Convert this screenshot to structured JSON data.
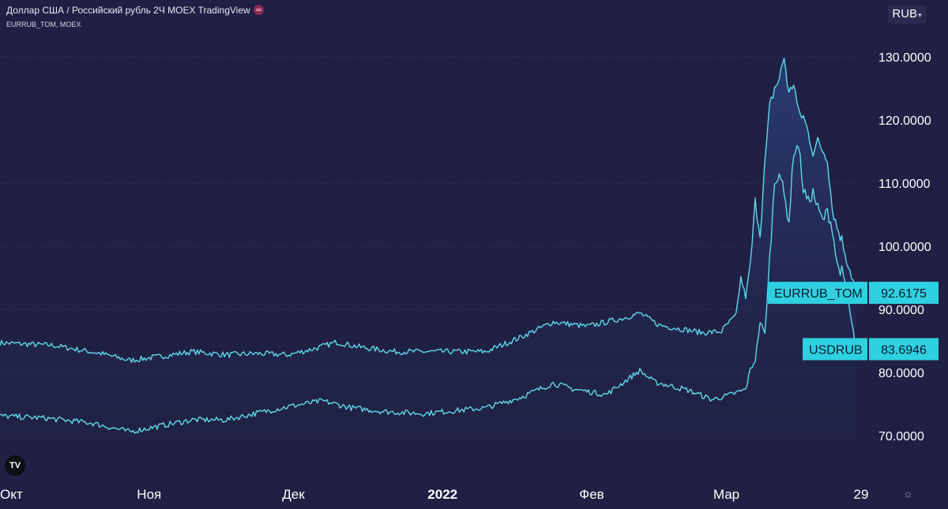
{
  "header": {
    "title": "Доллар США / Российский рубль  2Ч  MOEX  TradingView",
    "subtitle": "EURRUB_TOM, MOEX"
  },
  "currency_button": {
    "label": "RUB",
    "icon": "chevron-down-icon"
  },
  "logo": {
    "text": "TV",
    "icon": "tradingview-logo-icon"
  },
  "settings": {
    "icon": "gear-icon"
  },
  "colors": {
    "background": "#202044",
    "series_line": "#5fd8e8",
    "area_fill_top": "#2b3f78",
    "price_label_bg": "#2fd0e0",
    "price_label_text": "#0a1a30",
    "grid": "#3a3a66"
  },
  "chart_data": {
    "type": "line",
    "x_tick_labels": [
      "Окт",
      "Ноя",
      "Дек",
      "2022",
      "Фев",
      "Мар",
      "29"
    ],
    "y_tick_labels": [
      "70.0000",
      "80.0000",
      "90.0000",
      "100.0000",
      "110.0000",
      "120.0000",
      "130.0000"
    ],
    "y_ticks": [
      70,
      80,
      90,
      100,
      110,
      120,
      130
    ],
    "x_range": [
      "2021-10-01",
      "2022-03-29"
    ],
    "y_range": [
      64,
      134
    ],
    "series": [
      {
        "name": "EURRUB_TOM",
        "last_value": 92.6175,
        "last_value_label": "92.6175",
        "points": [
          [
            "2021-10-01",
            84.7
          ],
          [
            "2021-10-12",
            84.3
          ],
          [
            "2021-10-22",
            83.0
          ],
          [
            "2021-10-28",
            81.9
          ],
          [
            "2021-11-03",
            82.5
          ],
          [
            "2021-11-10",
            83.3
          ],
          [
            "2021-11-17",
            82.8
          ],
          [
            "2021-11-23",
            83.0
          ],
          [
            "2021-11-30",
            82.8
          ],
          [
            "2021-12-06",
            83.9
          ],
          [
            "2021-12-10",
            84.8
          ],
          [
            "2021-12-15",
            84.0
          ],
          [
            "2021-12-22",
            83.3
          ],
          [
            "2021-12-30",
            83.3
          ],
          [
            "2022-01-10",
            83.3
          ],
          [
            "2022-01-17",
            85.5
          ],
          [
            "2022-01-24",
            88.0
          ],
          [
            "2022-01-31",
            87.3
          ],
          [
            "2022-02-07",
            88.5
          ],
          [
            "2022-02-11",
            89.4
          ],
          [
            "2022-02-15",
            87.5
          ],
          [
            "2022-02-21",
            86.7
          ],
          [
            "2022-02-24",
            86.3
          ],
          [
            "2022-02-28",
            86.5
          ],
          [
            "2022-03-01",
            87.5
          ],
          [
            "2022-03-03",
            89.0
          ],
          [
            "2022-03-04",
            95.0
          ],
          [
            "2022-03-05",
            92.0
          ],
          [
            "2022-03-06",
            97.0
          ],
          [
            "2022-03-07",
            107.0
          ],
          [
            "2022-03-08",
            102.0
          ],
          [
            "2022-03-09",
            113.0
          ],
          [
            "2022-03-10",
            122.0
          ],
          [
            "2022-03-11",
            125.0
          ],
          [
            "2022-03-12",
            126.5
          ],
          [
            "2022-03-13",
            130.0
          ],
          [
            "2022-03-14",
            124.0
          ],
          [
            "2022-03-15",
            126.0
          ],
          [
            "2022-03-16",
            121.0
          ],
          [
            "2022-03-17",
            120.5
          ],
          [
            "2022-03-18",
            118.0
          ],
          [
            "2022-03-19",
            115.0
          ],
          [
            "2022-03-20",
            116.5
          ],
          [
            "2022-03-22",
            114.0
          ],
          [
            "2022-03-23",
            106.0
          ],
          [
            "2022-03-24",
            103.0
          ],
          [
            "2022-03-25",
            101.0
          ],
          [
            "2022-03-26",
            98.0
          ],
          [
            "2022-03-27",
            95.5
          ],
          [
            "2022-03-28",
            92.6
          ]
        ]
      },
      {
        "name": "USDRUB",
        "last_value": 83.6946,
        "last_value_label": "83.6946",
        "points": [
          [
            "2021-10-01",
            73.1
          ],
          [
            "2021-10-10",
            72.8
          ],
          [
            "2021-10-20",
            72.0
          ],
          [
            "2021-10-28",
            70.6
          ],
          [
            "2021-11-03",
            71.5
          ],
          [
            "2021-11-10",
            72.5
          ],
          [
            "2021-11-17",
            72.5
          ],
          [
            "2021-11-23",
            73.5
          ],
          [
            "2021-11-30",
            74.6
          ],
          [
            "2021-12-07",
            75.5
          ],
          [
            "2021-12-13",
            74.4
          ],
          [
            "2021-12-20",
            73.8
          ],
          [
            "2021-12-28",
            73.5
          ],
          [
            "2022-01-10",
            74.4
          ],
          [
            "2022-01-17",
            76.0
          ],
          [
            "2022-01-24",
            78.3
          ],
          [
            "2022-01-28",
            77.4
          ],
          [
            "2022-02-04",
            76.5
          ],
          [
            "2022-02-11",
            80.3
          ],
          [
            "2022-02-14",
            78.5
          ],
          [
            "2022-02-21",
            77.2
          ],
          [
            "2022-02-26",
            75.7
          ],
          [
            "2022-03-02",
            76.5
          ],
          [
            "2022-03-05",
            77.3
          ],
          [
            "2022-03-06",
            80.5
          ],
          [
            "2022-03-07",
            82.0
          ],
          [
            "2022-03-08",
            88.0
          ],
          [
            "2022-03-09",
            86.0
          ],
          [
            "2022-03-10",
            98.0
          ],
          [
            "2022-03-11",
            110.0
          ],
          [
            "2022-03-12",
            112.0
          ],
          [
            "2022-03-13",
            108.0
          ],
          [
            "2022-03-14",
            104.0
          ],
          [
            "2022-03-15",
            115.0
          ],
          [
            "2022-03-16",
            116.0
          ],
          [
            "2022-03-17",
            109.0
          ],
          [
            "2022-03-18",
            107.0
          ],
          [
            "2022-03-19",
            108.5
          ],
          [
            "2022-03-20",
            106.0
          ],
          [
            "2022-03-21",
            104.0
          ],
          [
            "2022-03-22",
            105.5
          ],
          [
            "2022-03-23",
            103.0
          ],
          [
            "2022-03-24",
            97.0
          ],
          [
            "2022-03-25",
            96.0
          ],
          [
            "2022-03-26",
            93.0
          ],
          [
            "2022-03-27",
            88.0
          ],
          [
            "2022-03-28",
            83.7
          ]
        ]
      }
    ],
    "grid": true,
    "legend": "price labels at right end of series"
  }
}
